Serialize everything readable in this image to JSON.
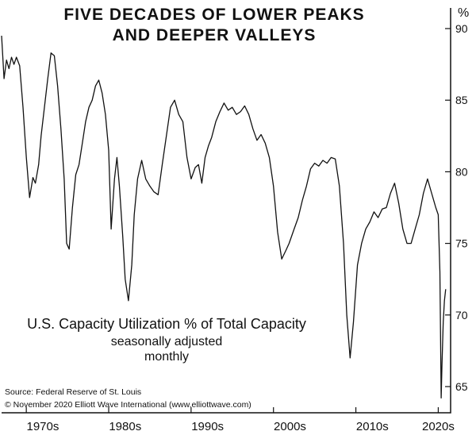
{
  "title_line1": "FIVE DECADES OF LOWER PEAKS",
  "title_line2": "AND DEEPER VALLEYS",
  "y_unit": "%",
  "description": {
    "line1": "U.S. Capacity Utilization % of Total Capacity",
    "line2": "seasonally adjusted",
    "line3": "monthly"
  },
  "source": "Source: Federal Reserve of St. Louis",
  "copyright": "© November 2020 Elliott Wave International (www.elliottwave.com)",
  "chart_data": {
    "type": "line",
    "title": "FIVE DECADES OF LOWER PEAKS AND DEEPER VALLEYS",
    "ylabel": "%",
    "ylim": [
      63,
      91
    ],
    "xlim": [
      1967.0,
      2021.5
    ],
    "y_ticks": [
      65,
      70,
      75,
      80,
      85,
      90
    ],
    "x_tick_labels": [
      "1970s",
      "1980s",
      "1990s",
      "2000s",
      "2010s",
      "2020s"
    ],
    "x_tick_positions": [
      1972,
      1982,
      1992,
      2002,
      2012,
      2020
    ],
    "grid": false,
    "line_color": "#111111",
    "series": [
      {
        "x": [
          1967.0,
          1967.3,
          1967.6,
          1967.9,
          1968.2,
          1968.5,
          1968.8,
          1969.2,
          1969.6,
          1970.0,
          1970.4,
          1970.8,
          1971.1,
          1971.5,
          1971.8,
          1972.2,
          1972.6,
          1973.0,
          1973.4,
          1973.8,
          1974.2,
          1974.6,
          1974.9,
          1975.2,
          1975.6,
          1976.0,
          1976.4,
          1976.8,
          1977.2,
          1977.6,
          1978.0,
          1978.4,
          1978.8,
          1979.2,
          1979.6,
          1980.0,
          1980.3,
          1980.7,
          1981.0,
          1981.3,
          1981.7,
          1982.0,
          1982.4,
          1982.8,
          1983.1,
          1983.5,
          1984.0,
          1984.5,
          1985.0,
          1985.5,
          1986.0,
          1986.5,
          1987.0,
          1987.5,
          1988.0,
          1988.5,
          1989.0,
          1989.5,
          1990.0,
          1990.5,
          1990.9,
          1991.3,
          1991.7,
          1992.1,
          1992.5,
          1993.0,
          1993.5,
          1994.0,
          1994.5,
          1995.0,
          1995.5,
          1996.0,
          1996.5,
          1997.0,
          1997.5,
          1998.0,
          1998.5,
          1999.0,
          1999.5,
          2000.0,
          2000.5,
          2001.0,
          2001.5,
          2001.9,
          2002.5,
          2003.0,
          2003.5,
          2004.0,
          2004.5,
          2005.0,
          2005.5,
          2006.0,
          2006.5,
          2007.0,
          2007.5,
          2008.0,
          2008.5,
          2008.9,
          2009.3,
          2009.7,
          2010.2,
          2010.7,
          2011.2,
          2011.7,
          2012.2,
          2012.7,
          2013.2,
          2013.7,
          2014.2,
          2014.7,
          2015.2,
          2015.7,
          2016.2,
          2016.7,
          2017.2,
          2017.7,
          2018.2,
          2018.7,
          2019.2,
          2019.7,
          2020.0,
          2020.2,
          2020.35,
          2020.45,
          2020.6,
          2020.75,
          2020.9
        ],
        "values": [
          89.5,
          86.5,
          87.8,
          87.2,
          88.0,
          87.5,
          88.0,
          87.4,
          84.5,
          81.0,
          78.2,
          79.6,
          79.2,
          80.5,
          82.5,
          84.5,
          86.5,
          88.3,
          88.1,
          86.0,
          83.0,
          79.5,
          75.0,
          74.6,
          77.5,
          79.8,
          80.5,
          82.0,
          83.5,
          84.5,
          85.0,
          86.0,
          86.4,
          85.5,
          84.0,
          81.5,
          76.0,
          79.5,
          81.0,
          79.0,
          75.5,
          72.5,
          71.0,
          73.5,
          77.0,
          79.5,
          80.8,
          79.5,
          79.0,
          78.6,
          78.4,
          80.5,
          82.5,
          84.5,
          85.0,
          84.0,
          83.5,
          81.0,
          79.5,
          80.3,
          80.5,
          79.2,
          81.0,
          81.8,
          82.4,
          83.5,
          84.2,
          84.8,
          84.3,
          84.5,
          84.0,
          84.2,
          84.6,
          84.0,
          83.0,
          82.2,
          82.6,
          82.0,
          81.0,
          79.0,
          75.8,
          73.9,
          74.5,
          75.0,
          76.0,
          76.8,
          78.0,
          79.0,
          80.2,
          80.6,
          80.4,
          80.8,
          80.6,
          81.0,
          80.9,
          79.0,
          75.0,
          70.0,
          67.0,
          69.5,
          73.5,
          75.0,
          76.0,
          76.5,
          77.2,
          76.8,
          77.4,
          77.5,
          78.5,
          79.2,
          77.8,
          76.0,
          75.0,
          75.0,
          76.0,
          77.0,
          78.5,
          79.5,
          78.5,
          77.5,
          77.0,
          73.0,
          64.2,
          66.5,
          69.5,
          71.0,
          71.8
        ]
      }
    ]
  }
}
